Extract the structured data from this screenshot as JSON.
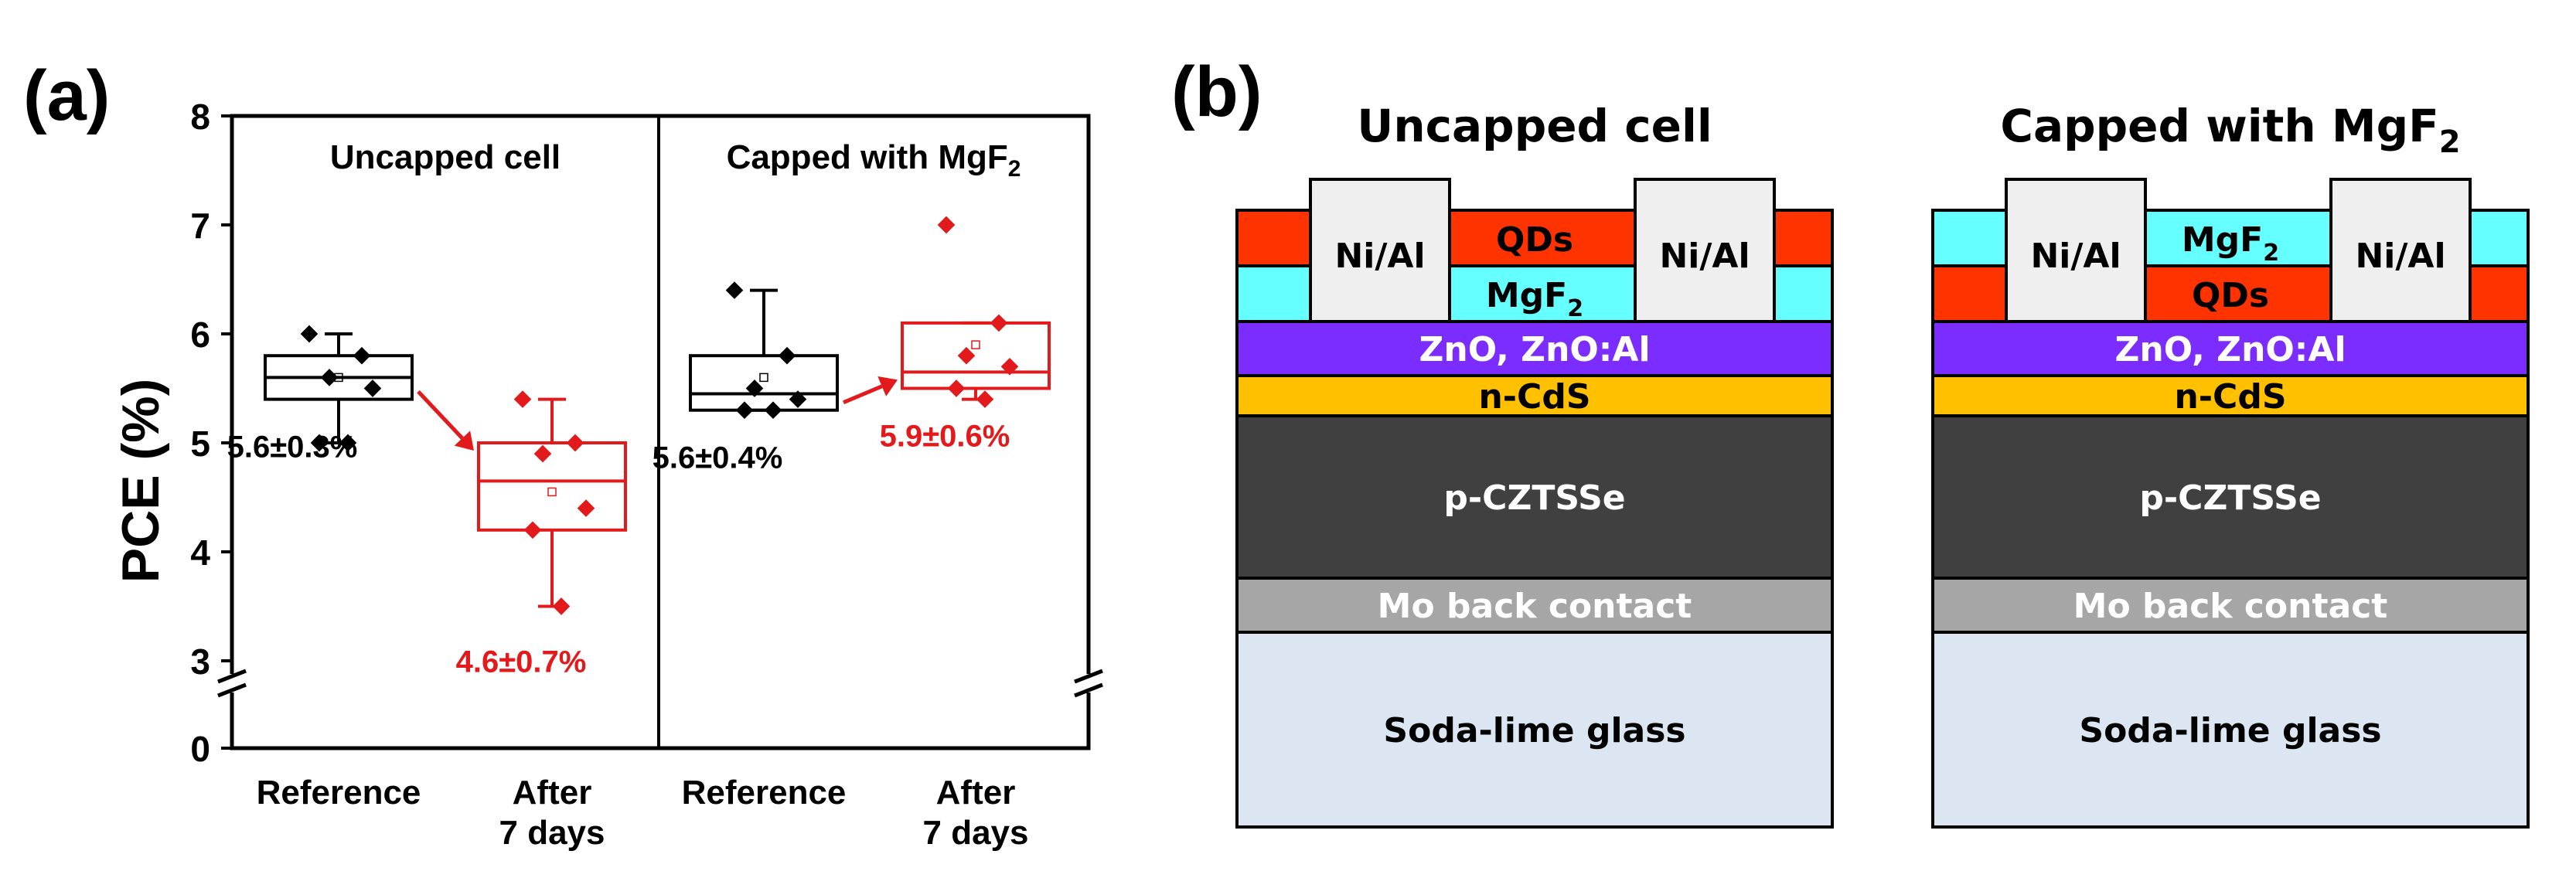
{
  "panel_a": {
    "label": "(a)",
    "chart_data": {
      "type": "box",
      "ylabel": "PCE (%)",
      "ylim": [
        0,
        8
      ],
      "axis_break": [
        0,
        2.7
      ],
      "yticks": [
        "0",
        "3",
        "4",
        "5",
        "6",
        "7",
        "8"
      ],
      "ytick_values": [
        0,
        3,
        4,
        5,
        6,
        7,
        8
      ],
      "groups": [
        {
          "title": "Uncapped cell",
          "title_suffix": ""
        },
        {
          "title": "Capped with MgF",
          "title_suffix": "2"
        }
      ],
      "categories": [
        {
          "label": [
            "Reference"
          ]
        },
        {
          "label": [
            "After",
            "7 days"
          ]
        },
        {
          "label": [
            "Reference"
          ]
        },
        {
          "label": [
            "After",
            "7 days"
          ]
        }
      ],
      "series": [
        {
          "name": "Uncapped reference",
          "color": "#000000",
          "q1": 5.4,
          "median": 5.6,
          "q3": 5.8,
          "whisker_low": 5.0,
          "whisker_high": 6.0,
          "mean": 5.6,
          "points": [
            6.0,
            5.8,
            5.6,
            5.5,
            5.0,
            5.0
          ],
          "annotation": "5.6±0.3%"
        },
        {
          "name": "Uncapped after 7 days",
          "color": "#e31a1c",
          "q1": 4.2,
          "median": 4.65,
          "q3": 5.0,
          "whisker_low": 3.5,
          "whisker_high": 5.4,
          "mean": 4.55,
          "points": [
            5.4,
            5.0,
            4.9,
            4.4,
            4.2,
            3.5
          ],
          "annotation": "4.6±0.7%"
        },
        {
          "name": "Capped reference",
          "color": "#000000",
          "q1": 5.3,
          "median": 5.45,
          "q3": 5.8,
          "whisker_low": 5.3,
          "whisker_high": 6.4,
          "mean": 5.6,
          "points": [
            6.4,
            5.8,
            5.5,
            5.4,
            5.3,
            5.3
          ],
          "annotation": "5.6±0.4%"
        },
        {
          "name": "Capped after 7 days",
          "color": "#e31a1c",
          "q1": 5.5,
          "median": 5.65,
          "q3": 6.1,
          "whisker_low": 5.4,
          "whisker_high": 6.1,
          "mean": 5.9,
          "points": [
            7.0,
            6.1,
            5.8,
            5.7,
            5.5,
            5.4
          ],
          "annotation": "5.9±0.6%"
        }
      ],
      "arrows": [
        {
          "from": "Uncapped reference",
          "to": "Uncapped after 7 days",
          "color": "#e31a1c"
        },
        {
          "from": "Capped reference",
          "to": "Capped after 7 days",
          "color": "#e31a1c"
        }
      ]
    }
  },
  "panel_b": {
    "label": "(b)",
    "stacks": [
      {
        "title": "Uncapped cell",
        "title_suffix": "",
        "contact_label": "Ni/Al",
        "top_layers": [
          {
            "name": "QDs",
            "suffix": "",
            "color": "#ff3300"
          },
          {
            "name": "MgF",
            "suffix": "2",
            "color": "#66ffff"
          }
        ]
      },
      {
        "title": "Capped with MgF",
        "title_suffix": "2",
        "contact_label": "Ni/Al",
        "top_layers": [
          {
            "name": "MgF",
            "suffix": "2",
            "color": "#66ffff"
          },
          {
            "name": "QDs",
            "suffix": "",
            "color": "#ff3300"
          }
        ]
      }
    ],
    "common_layers": [
      {
        "name": "ZnO, ZnO:Al",
        "color": "#7b2cff",
        "text_color": "#ffffff"
      },
      {
        "name": "n-CdS",
        "color": "#ffc000",
        "text_color": "#000000"
      },
      {
        "name": "p-CZTSSe",
        "color": "#404040",
        "text_color": "#ffffff"
      },
      {
        "name": "Mo back contact",
        "color": "#a6a6a6",
        "text_color": "#ffffff"
      },
      {
        "name": "Soda-lime glass",
        "color": "#dce6f2",
        "text_color": "#000000"
      }
    ]
  }
}
